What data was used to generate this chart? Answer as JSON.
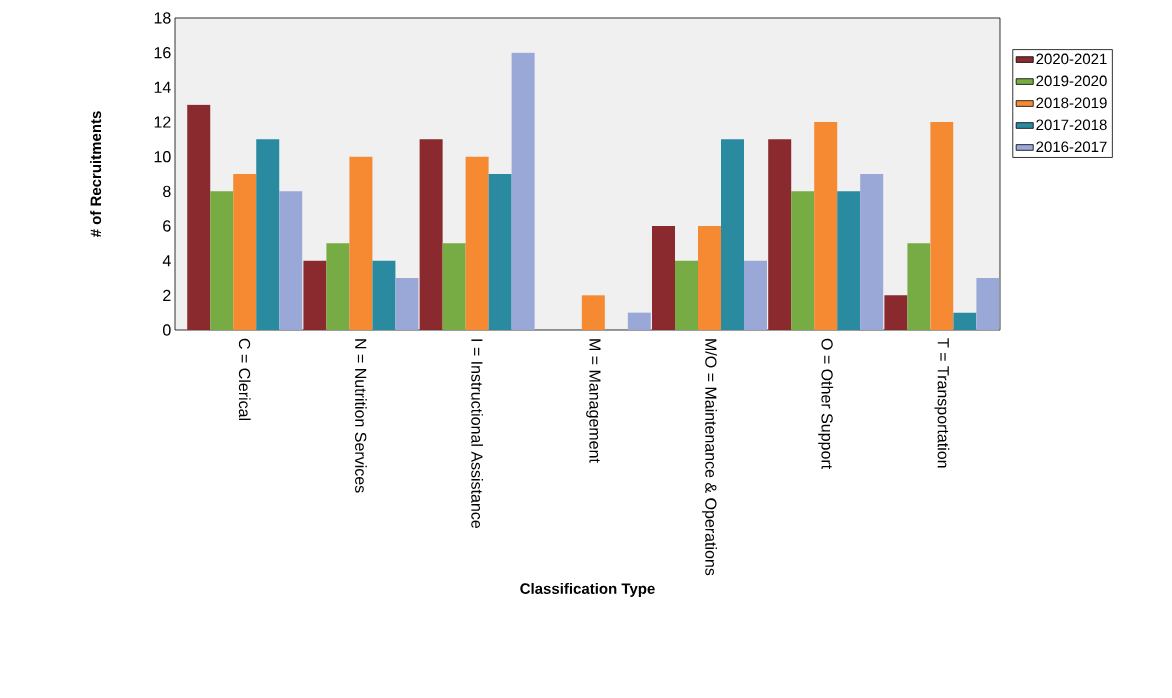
{
  "chart_data": {
    "type": "bar",
    "xlabel": "Classification Type",
    "ylabel": "# of Recruitments",
    "categories": [
      "C = Clerical",
      "N = Nutrition Services",
      "I = Instructional Assistance",
      "M = Management",
      "M/O = Maintenance & Operations",
      "O = Other Support",
      "T = Transportation"
    ],
    "series": [
      {
        "name": "2020-2021",
        "color": "#8b2a2e",
        "values": [
          13,
          4,
          11,
          0,
          6,
          11,
          2
        ]
      },
      {
        "name": "2019-2020",
        "color": "#77ab43",
        "values": [
          8,
          5,
          5,
          0,
          4,
          8,
          5
        ]
      },
      {
        "name": "2018-2019",
        "color": "#f58a33",
        "values": [
          9,
          10,
          10,
          2,
          6,
          12,
          12
        ]
      },
      {
        "name": "2017-2018",
        "color": "#2a8aa0",
        "values": [
          11,
          4,
          9,
          0,
          11,
          8,
          1
        ]
      },
      {
        "name": "2016-2017",
        "color": "#9aa8d8",
        "values": [
          8,
          3,
          16,
          1,
          4,
          9,
          3
        ]
      }
    ],
    "ylim": [
      0,
      18
    ],
    "yticks": [
      0,
      2,
      4,
      6,
      8,
      10,
      12,
      14,
      16,
      18
    ],
    "grid": false,
    "legend": "right"
  }
}
